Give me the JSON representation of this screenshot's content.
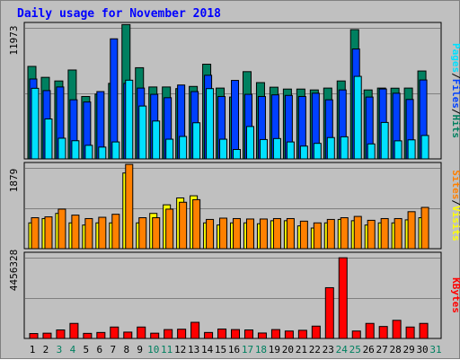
{
  "chart_data": {
    "type": "bar",
    "title": "Daily usage for November 2018",
    "x": [
      "1",
      "2",
      "3",
      "4",
      "5",
      "6",
      "7",
      "8",
      "9",
      "10",
      "11",
      "12",
      "13",
      "14",
      "15",
      "16",
      "17",
      "18",
      "19",
      "20",
      "21",
      "22",
      "23",
      "24",
      "25",
      "26",
      "27",
      "28",
      "29",
      "30",
      "31"
    ],
    "weekend_days": [
      "3",
      "4",
      "10",
      "11",
      "17",
      "18",
      "24",
      "25",
      "31"
    ],
    "panels": [
      {
        "id": "top",
        "max_label": "11973",
        "ylim": [
          0,
          11973
        ],
        "legend": [
          "Pages",
          "/",
          "Files",
          "/",
          "Hits"
        ],
        "legend_colors": [
          "#00e0ff",
          "#000000",
          "#0040ff",
          "#000000",
          "#008060"
        ],
        "series": [
          {
            "name": "Hits",
            "color": "#008060",
            "values": [
              8450,
              7450,
              7120,
              8120,
              5700,
              5920,
              6900,
              12270,
              8330,
              6570,
              6570,
              6420,
              6620,
              8650,
              6470,
              5650,
              7970,
              6970,
              6550,
              6380,
              6380,
              6300,
              6470,
              7120,
              11810,
              6300,
              6470,
              6460,
              6470,
              8030,
              null
            ]
          },
          {
            "name": "Files",
            "color": "#0040ff",
            "values": [
              7300,
              6240,
              6570,
              5400,
              5200,
              6150,
              10970,
              6900,
              6470,
              5900,
              5590,
              6750,
              6150,
              7640,
              5700,
              7170,
              5900,
              5700,
              5850,
              5800,
              5700,
              6000,
              5400,
              6300,
              10040,
              5650,
              6390,
              6000,
              5430,
              7210,
              null
            ]
          },
          {
            "name": "Pages",
            "color": "#00e0ff",
            "values": [
              6450,
              3650,
              1890,
              1660,
              1240,
              1080,
              1550,
              7190,
              4830,
              3460,
              1800,
              2050,
              3300,
              6420,
              1800,
              860,
              2960,
              1770,
              1860,
              1550,
              1170,
              1420,
              1950,
              2020,
              7540,
              1370,
              3330,
              1650,
              1740,
              2140,
              null
            ]
          }
        ]
      },
      {
        "id": "middle",
        "max_label": "1879",
        "ylim": [
          0,
          1879
        ],
        "legend": [
          "Sites",
          "/",
          "Visits"
        ],
        "legend_colors": [
          "#ff8000",
          "#000000",
          "#ffff00"
        ],
        "series": [
          {
            "name": "Visits",
            "color": "#ffff00",
            "values": [
              600,
              700,
              820,
              600,
              550,
              600,
              600,
              1760,
              600,
              820,
              1020,
              1180,
              1230,
              600,
              550,
              600,
              600,
              580,
              650,
              650,
              530,
              480,
              600,
              680,
              650,
              550,
              600,
              600,
              670,
              720,
              null
            ]
          },
          {
            "name": "Sites",
            "color": "#ff8000",
            "values": [
              720,
              740,
              920,
              780,
              700,
              730,
              800,
              1960,
              720,
              720,
              920,
              1080,
              1140,
              680,
              710,
              700,
              690,
              690,
              700,
              700,
              640,
              600,
              680,
              720,
              750,
              660,
              700,
              700,
              860,
              960,
              null
            ]
          }
        ]
      },
      {
        "id": "bottom",
        "max_label": "4456328",
        "ylim": [
          0,
          4456328
        ],
        "legend": [
          "KBytes"
        ],
        "legend_colors": [
          "#ff0000"
        ],
        "series": [
          {
            "name": "KBytes",
            "color": "#ff0000",
            "values": [
              270000,
              290000,
              470000,
              830000,
              280000,
              330000,
              630000,
              350000,
              630000,
              290000,
              490000,
              510000,
              890000,
              330000,
              520000,
              490000,
              470000,
              300000,
              490000,
              410000,
              450000,
              680000,
              2800000,
              4450000,
              410000,
              830000,
              660000,
              1000000,
              630000,
              830000,
              null
            ]
          }
        ]
      }
    ]
  }
}
